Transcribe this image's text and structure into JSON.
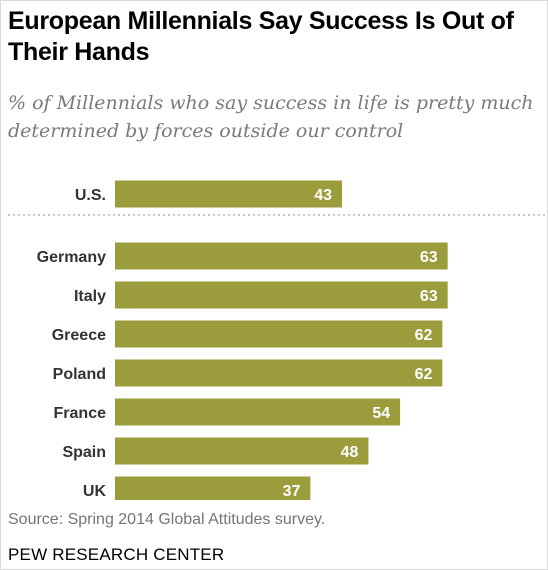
{
  "title": "European Millennials Say Success Is Out of Their Hands",
  "subtitle": "% of Millennials who say success in life is pretty much determined by forces outside our control",
  "source": "Source: Spring 2014 Global Attitudes survey.",
  "brand": "PEW RESEARCH CENTER",
  "colors": {
    "bar": "#9b9c3b",
    "value_text": "#ffffff",
    "category_text": "#333333",
    "separator": "#a6a6a6"
  },
  "chart_data": {
    "type": "bar",
    "orientation": "horizontal",
    "categories": [
      "U.S.",
      "Germany",
      "Italy",
      "Greece",
      "Poland",
      "France",
      "Spain",
      "UK"
    ],
    "values": [
      43,
      63,
      63,
      62,
      62,
      54,
      48,
      37
    ],
    "value_labels": [
      "43",
      "63",
      "63",
      "62",
      "62",
      "54",
      "48",
      "37"
    ],
    "separator_after": "U.S.",
    "unit": "%",
    "xlim": [
      0,
      100
    ],
    "grid": false,
    "legend": "none"
  }
}
